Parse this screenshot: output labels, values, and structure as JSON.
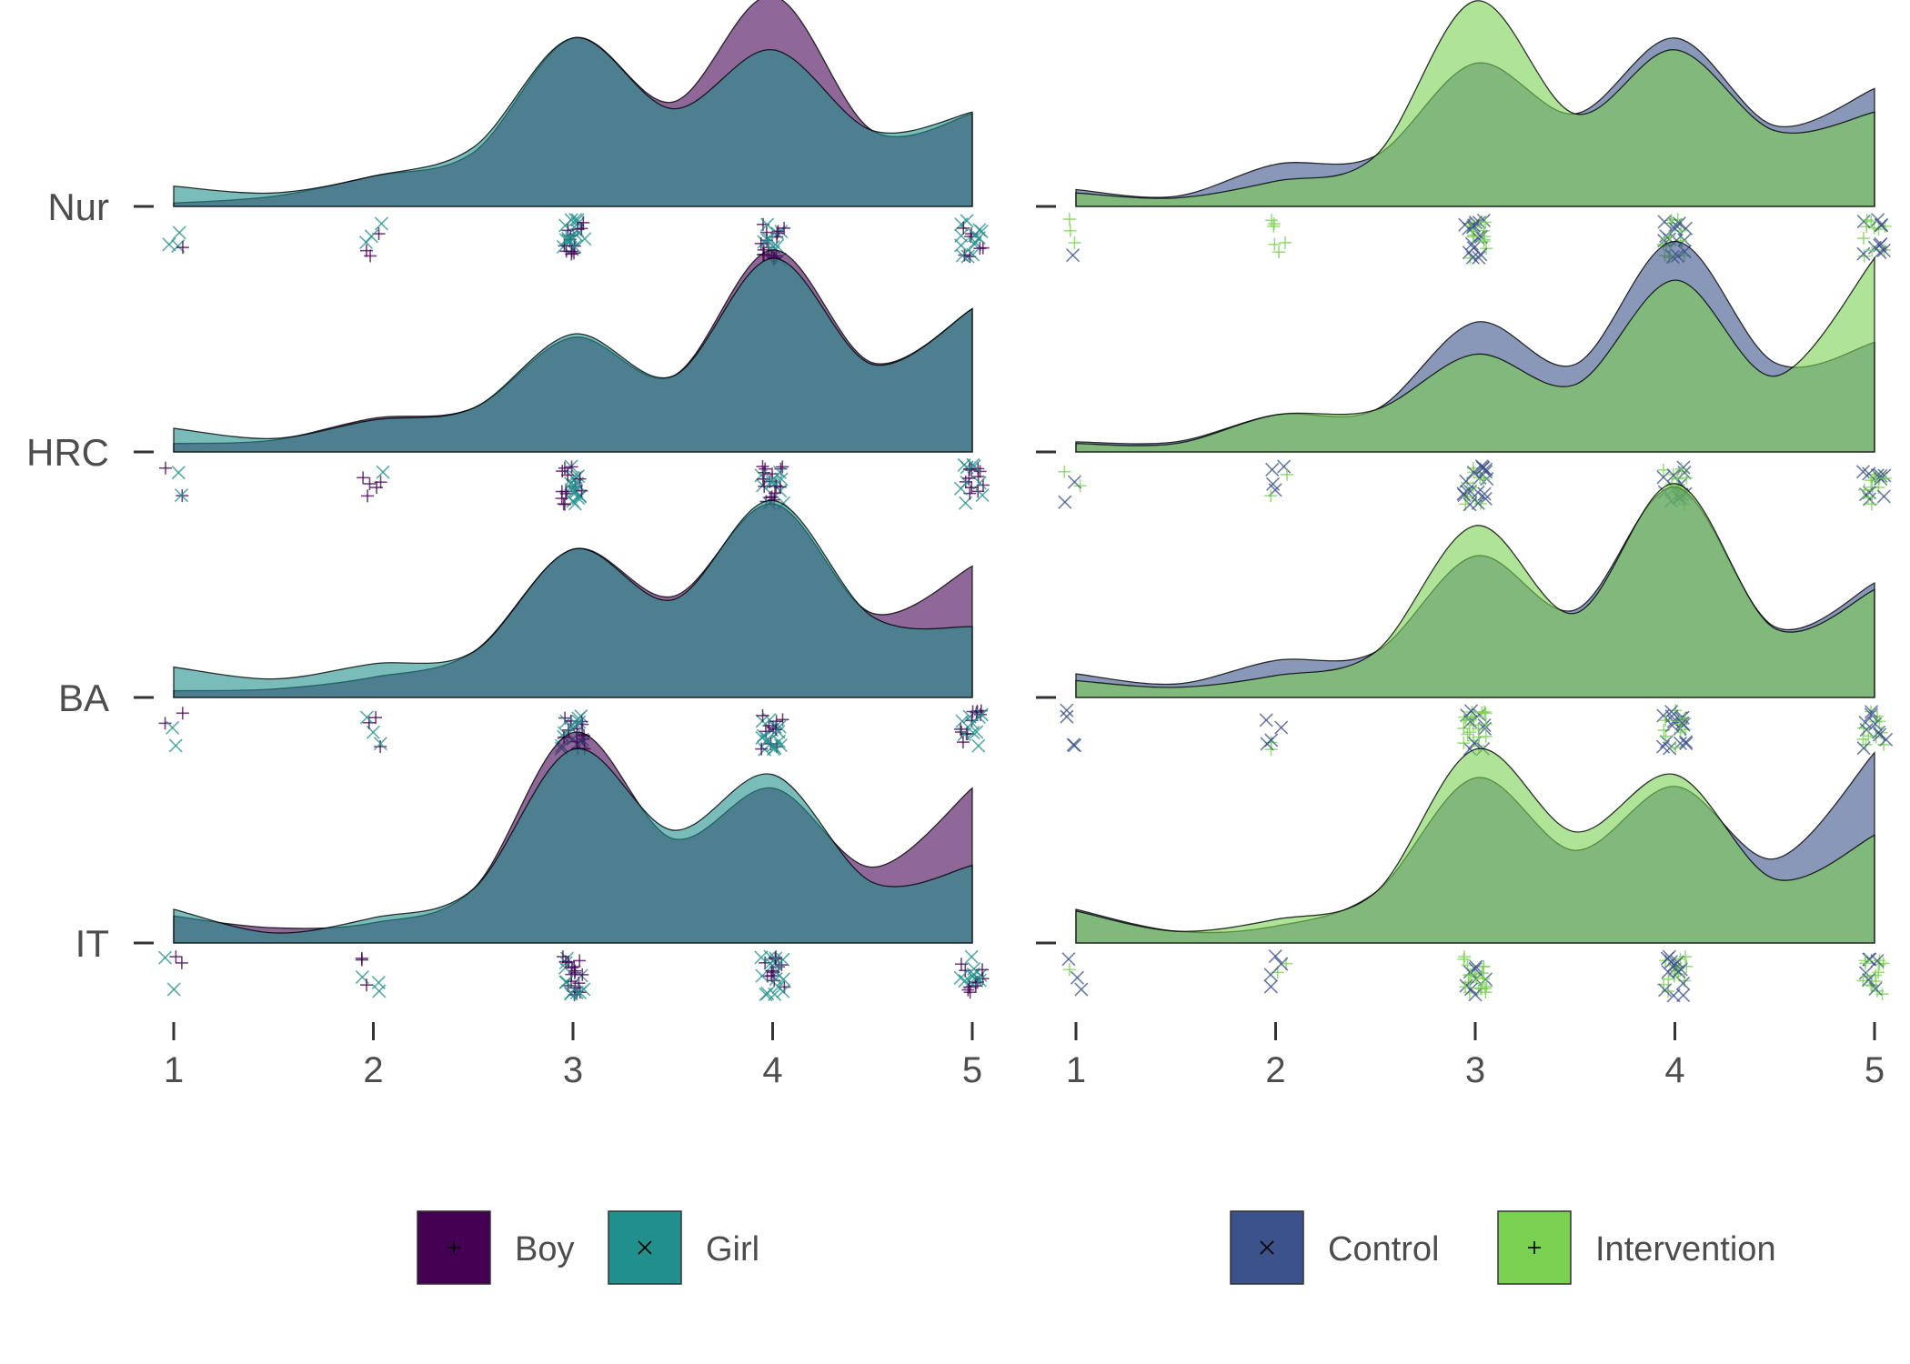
{
  "chart_data": [
    {
      "type": "area",
      "subtype": "ridgeline-density",
      "title": "",
      "xlabel": "",
      "ylabel": "",
      "xlim": [
        1,
        5
      ],
      "x_ticks": [
        "1",
        "2",
        "3",
        "4",
        "5"
      ],
      "rows": [
        "Nur",
        "HRC",
        "BA",
        "IT"
      ],
      "grid": false,
      "legend_position": "bottom",
      "series": [
        {
          "name": "Boy",
          "color": "#440154",
          "marker": "plus"
        },
        {
          "name": "Girl",
          "color": "#21908C",
          "marker": "cross"
        }
      ],
      "density_x": [
        1,
        1.5,
        2,
        2.5,
        3,
        3.5,
        4,
        4.5,
        5
      ],
      "density": {
        "Nur": {
          "Boy": [
            0.02,
            0.06,
            0.18,
            0.32,
            1.0,
            0.62,
            1.25,
            0.45,
            0.55
          ],
          "Girl": [
            0.12,
            0.08,
            0.18,
            0.35,
            1.0,
            0.58,
            0.93,
            0.45,
            0.56
          ]
        },
        "HRC": {
          "Boy": [
            0.05,
            0.07,
            0.2,
            0.26,
            0.68,
            0.45,
            1.2,
            0.53,
            0.85
          ],
          "Girl": [
            0.14,
            0.08,
            0.19,
            0.26,
            0.7,
            0.45,
            1.15,
            0.52,
            0.85
          ]
        },
        "BA": {
          "Boy": [
            0.04,
            0.05,
            0.12,
            0.27,
            0.88,
            0.6,
            1.15,
            0.5,
            0.78
          ],
          "Girl": [
            0.18,
            0.11,
            0.2,
            0.27,
            0.88,
            0.58,
            1.17,
            0.48,
            0.42
          ]
        },
        "IT": {
          "Boy": [
            0.16,
            0.09,
            0.12,
            0.32,
            1.25,
            0.62,
            0.92,
            0.45,
            0.92
          ],
          "Girl": [
            0.2,
            0.06,
            0.15,
            0.32,
            1.15,
            0.67,
            1.0,
            0.36,
            0.46
          ]
        }
      }
    },
    {
      "type": "area",
      "subtype": "ridgeline-density",
      "title": "",
      "xlabel": "",
      "ylabel": "",
      "xlim": [
        1,
        5
      ],
      "x_ticks": [
        "1",
        "2",
        "3",
        "4",
        "5"
      ],
      "rows": [
        "Nur",
        "HRC",
        "BA",
        "IT"
      ],
      "grid": false,
      "legend_position": "bottom",
      "series": [
        {
          "name": "Control",
          "color": "#3B528B",
          "marker": "cross"
        },
        {
          "name": "Intervention",
          "color": "#7AD151",
          "marker": "plus"
        }
      ],
      "density_x": [
        1,
        1.5,
        2,
        2.5,
        3,
        3.5,
        4,
        4.5,
        5
      ],
      "density": {
        "Nur": {
          "Control": [
            0.1,
            0.06,
            0.25,
            0.3,
            0.85,
            0.55,
            1.0,
            0.48,
            0.7
          ],
          "Intervention": [
            0.08,
            0.05,
            0.15,
            0.3,
            1.22,
            0.55,
            0.93,
            0.45,
            0.56
          ]
        },
        "HRC": {
          "Control": [
            0.06,
            0.06,
            0.22,
            0.25,
            0.77,
            0.52,
            1.25,
            0.53,
            0.65
          ],
          "Intervention": [
            0.05,
            0.05,
            0.22,
            0.25,
            0.58,
            0.4,
            1.02,
            0.45,
            1.15
          ]
        },
        "BA": {
          "Control": [
            0.14,
            0.08,
            0.22,
            0.27,
            0.84,
            0.52,
            1.25,
            0.42,
            0.68
          ],
          "Intervention": [
            0.1,
            0.06,
            0.13,
            0.27,
            1.02,
            0.5,
            1.27,
            0.41,
            0.64
          ]
        },
        "IT": {
          "Control": [
            0.2,
            0.07,
            0.1,
            0.3,
            0.98,
            0.55,
            0.93,
            0.5,
            1.13
          ],
          "Intervention": [
            0.19,
            0.07,
            0.14,
            0.3,
            1.15,
            0.66,
            1.0,
            0.38,
            0.64
          ]
        }
      }
    }
  ]
}
